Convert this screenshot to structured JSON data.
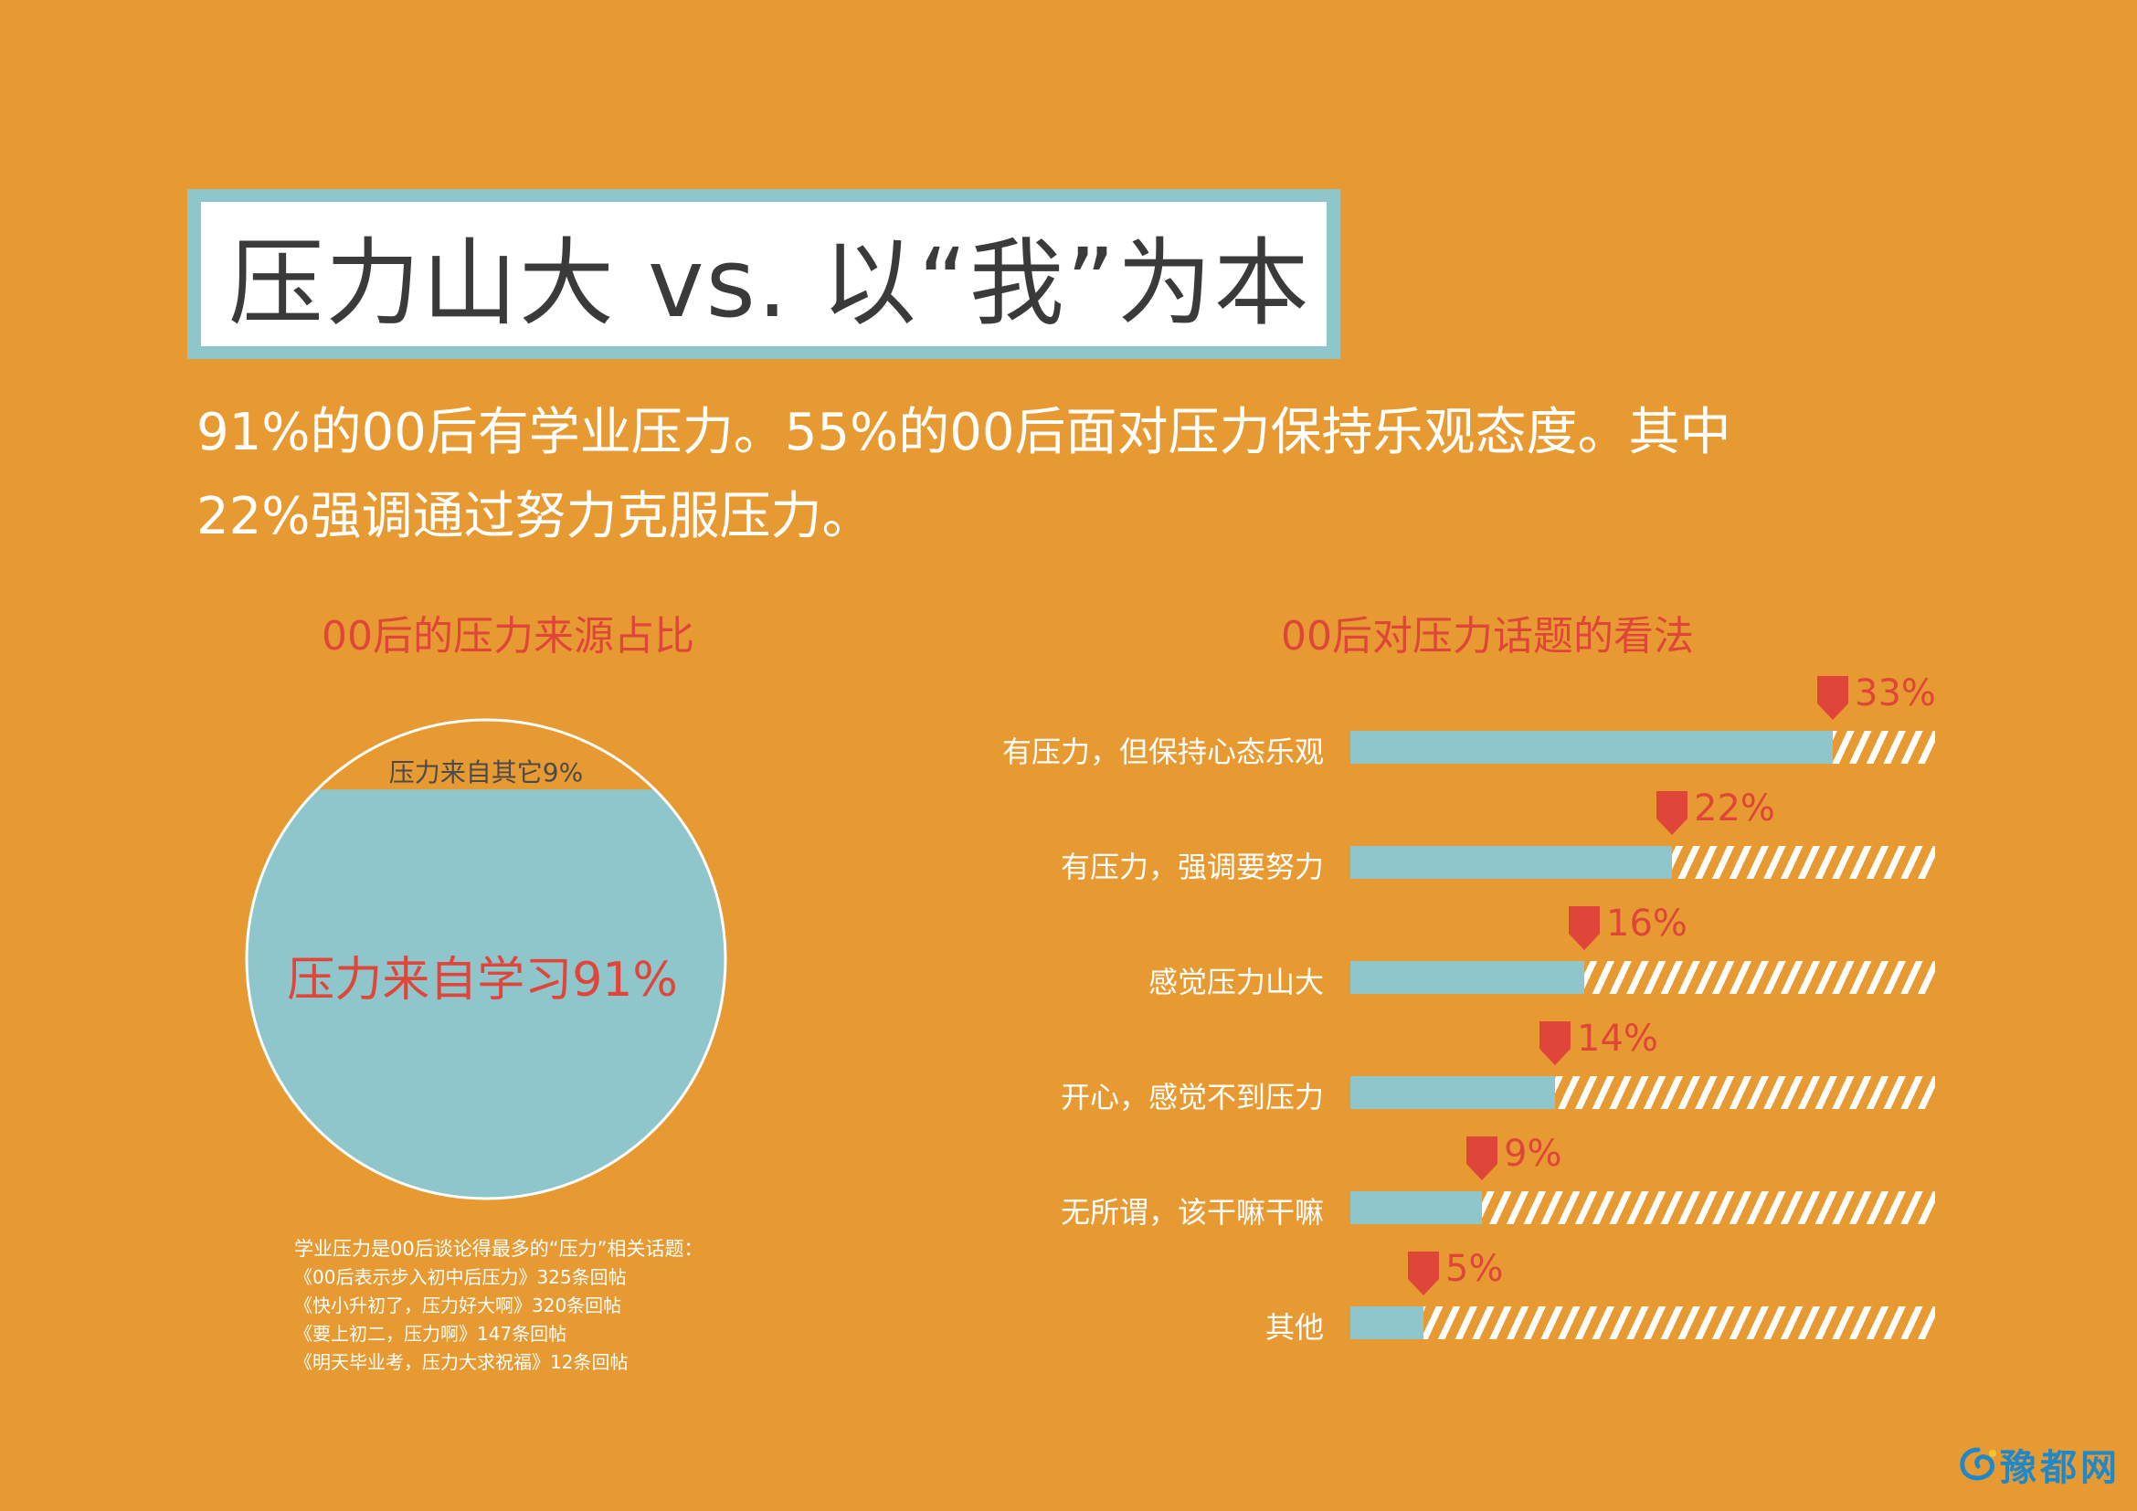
{
  "title": "压力山大 vs. 以“我”为本",
  "summary": {
    "line1": "91%的00后有学业压力。55%的00后面对压力保持乐观态度。其中",
    "line2": "22%强调通过努力克服压力。"
  },
  "colors": {
    "background": "#E89A32",
    "teal": "#8FC6CC",
    "red": "#E0453A",
    "white": "#FFFFFF"
  },
  "chart_data": [
    {
      "type": "pie",
      "title": "00后的压力来源占比",
      "slices": [
        {
          "label": "压力来自学习91%",
          "value": 91
        },
        {
          "label": "压力来自其它9%",
          "value": 9
        }
      ]
    },
    {
      "type": "bar",
      "orientation": "horizontal",
      "title": "00后对压力话题的看法",
      "categories": [
        "有压力，但保持心态乐观",
        "有压力，强调要努力",
        "感觉压力山大",
        "开心，感觉不到压力",
        "无所谓，该干嘛干嘛",
        "其他"
      ],
      "values": [
        33,
        22,
        16,
        14,
        9,
        5
      ],
      "value_labels": [
        "33%",
        "22%",
        "16%",
        "14%",
        "9%",
        "5%"
      ],
      "unit": "%"
    }
  ],
  "note": {
    "lines": [
      "学业压力是00后谈论得最多的“压力”相关话题：",
      "《00后表示步入初中后压力》325条回帖",
      "《快小升初了，压力好大啊》320条回帖",
      "《要上初二，压力啊》147条回帖",
      "《明天毕业考，压力大求祝福》12条回帖"
    ]
  },
  "logo": {
    "text": "豫都网",
    "icon": "swirl-logo-icon"
  }
}
